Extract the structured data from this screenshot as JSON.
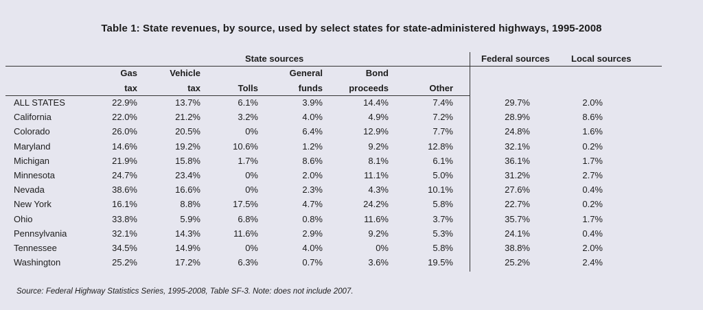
{
  "chart_data": {
    "type": "table",
    "title": "Table 1: State revenues, by source, used by select states for state-administered highways, 1995-2008",
    "group_headers": {
      "state": "State sources",
      "federal": "Federal sources",
      "local": "Local sources"
    },
    "columns": [
      {
        "line1": "Gas",
        "line2": "tax"
      },
      {
        "line1": "Vehicle",
        "line2": "tax"
      },
      {
        "line1": "",
        "line2": "Tolls"
      },
      {
        "line1": "General",
        "line2": "funds"
      },
      {
        "line1": "Bond",
        "line2": "proceeds"
      },
      {
        "line1": "",
        "line2": "Other"
      }
    ],
    "rows": [
      {
        "state": "ALL STATES",
        "values": [
          "22.9%",
          "13.7%",
          "6.1%",
          "3.9%",
          "14.4%",
          "7.4%",
          "29.7%",
          "2.0%"
        ]
      },
      {
        "state": "California",
        "values": [
          "22.0%",
          "21.2%",
          "3.2%",
          "4.0%",
          "4.9%",
          "7.2%",
          "28.9%",
          "8.6%"
        ]
      },
      {
        "state": "Colorado",
        "values": [
          "26.0%",
          "20.5%",
          "0%",
          "6.4%",
          "12.9%",
          "7.7%",
          "24.8%",
          "1.6%"
        ]
      },
      {
        "state": "Maryland",
        "values": [
          "14.6%",
          "19.2%",
          "10.6%",
          "1.2%",
          "9.2%",
          "12.8%",
          "32.1%",
          "0.2%"
        ]
      },
      {
        "state": "Michigan",
        "values": [
          "21.9%",
          "15.8%",
          "1.7%",
          "8.6%",
          "8.1%",
          "6.1%",
          "36.1%",
          "1.7%"
        ]
      },
      {
        "state": "Minnesota",
        "values": [
          "24.7%",
          "23.4%",
          "0%",
          "2.0%",
          "11.1%",
          "5.0%",
          "31.2%",
          "2.7%"
        ]
      },
      {
        "state": "Nevada",
        "values": [
          "38.6%",
          "16.6%",
          "0%",
          "2.3%",
          "4.3%",
          "10.1%",
          "27.6%",
          "0.4%"
        ]
      },
      {
        "state": "New York",
        "values": [
          "16.1%",
          "8.8%",
          "17.5%",
          "4.7%",
          "24.2%",
          "5.8%",
          "22.7%",
          "0.2%"
        ]
      },
      {
        "state": "Ohio",
        "values": [
          "33.8%",
          "5.9%",
          "6.8%",
          "0.8%",
          "11.6%",
          "3.7%",
          "35.7%",
          "1.7%"
        ]
      },
      {
        "state": "Pennsylvania",
        "values": [
          "32.1%",
          "14.3%",
          "11.6%",
          "2.9%",
          "9.2%",
          "5.3%",
          "24.1%",
          "0.4%"
        ]
      },
      {
        "state": "Tennessee",
        "values": [
          "34.5%",
          "14.9%",
          "0%",
          "4.0%",
          "0%",
          "5.8%",
          "38.8%",
          "2.0%"
        ]
      },
      {
        "state": "Washington",
        "values": [
          "25.2%",
          "17.2%",
          "6.3%",
          "0.7%",
          "3.6%",
          "19.5%",
          "25.2%",
          "2.4%"
        ]
      }
    ],
    "source": "Source: Federal Highway Statistics Series, 1995-2008, Table SF-3. Note: does not include 2007."
  }
}
